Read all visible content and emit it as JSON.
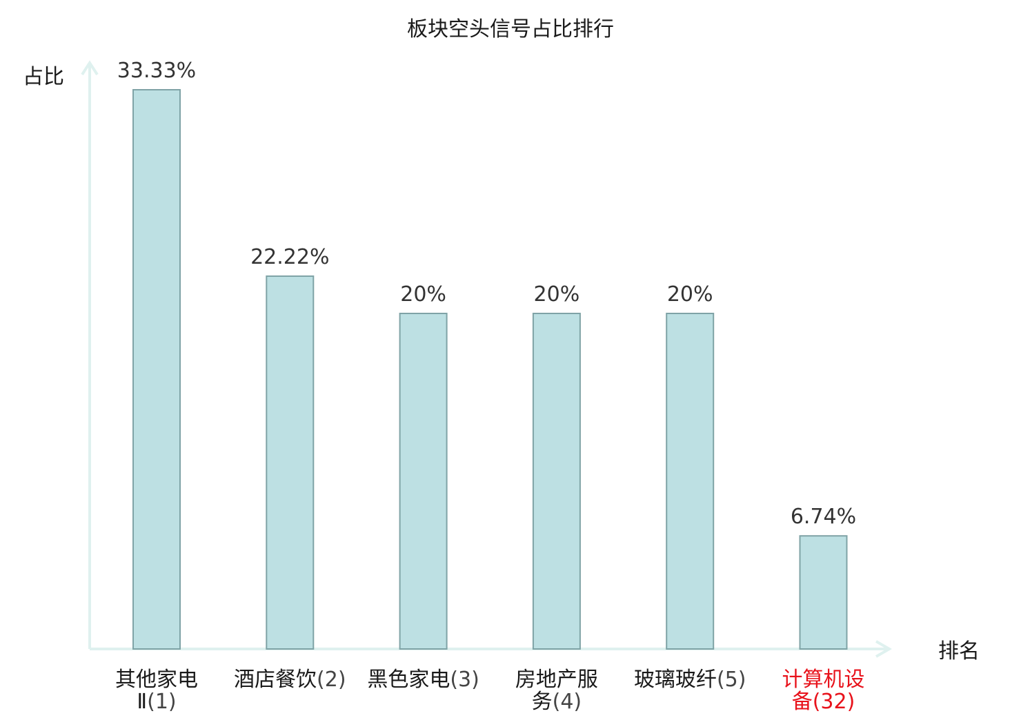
{
  "chart_data": {
    "type": "bar",
    "title": "板块空头信号占比排行",
    "xlabel": "排名",
    "ylabel": "占比",
    "ylim": [
      0,
      35
    ],
    "grid": false,
    "categories": [
      {
        "line1": "其他家电",
        "line2_name": "Ⅱ",
        "line2_rank": "(1)"
      },
      {
        "line1_name": "酒店餐饮",
        "line1_rank": "(2)"
      },
      {
        "line1_name": "黑色家电",
        "line1_rank": "(3)"
      },
      {
        "line1": "房地产服",
        "line2_name": "务",
        "line2_rank": "(4)"
      },
      {
        "line1_name": "玻璃玻纤",
        "line1_rank": "(5)"
      },
      {
        "line1": "计算机设",
        "line2_name": "备",
        "line2_rank": "(32)"
      }
    ],
    "values": [
      33.33,
      22.22,
      20,
      20,
      20,
      6.74
    ],
    "value_labels": [
      "33.33%",
      "22.22%",
      "20%",
      "20%",
      "20%",
      "6.74%"
    ],
    "highlight_index": 5,
    "colors": {
      "bar_fill": "#bde0e3",
      "bar_stroke": "#7fa3a6",
      "axis": "#dff1ef",
      "label": "#1a1a1a",
      "rank": "#444444",
      "highlight": "#e8121b"
    }
  }
}
